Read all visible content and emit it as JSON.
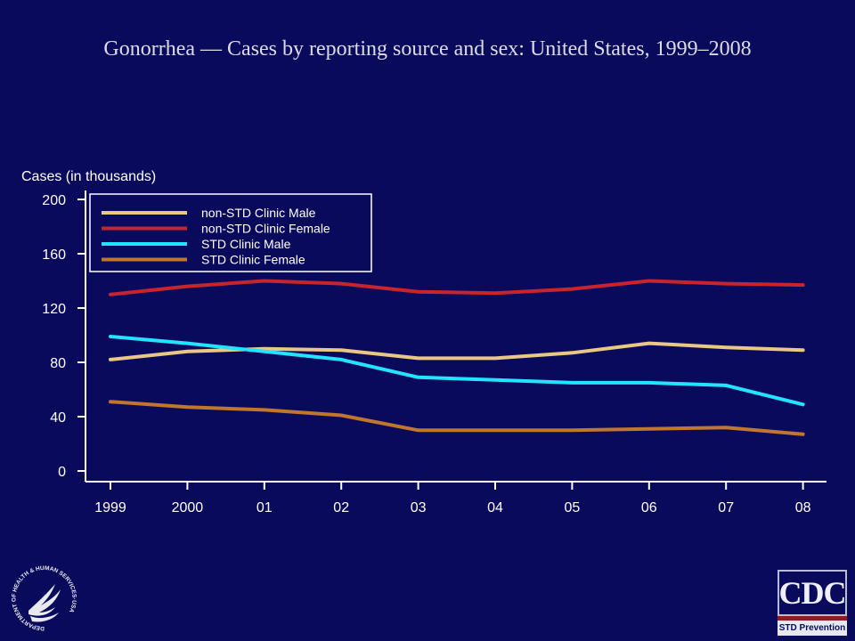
{
  "page": {
    "title": "Gonorrhea — Cases by reporting source and sex: United States, 1999–2008"
  },
  "chart_data": {
    "type": "line",
    "title": "Gonorrhea — Cases by reporting source and sex: United States, 1999–2008",
    "ylabel": "Cases (in thousands)",
    "xlabel": "",
    "categories": [
      "1999",
      "2000",
      "01",
      "02",
      "03",
      "04",
      "05",
      "06",
      "07",
      "08"
    ],
    "ylim": [
      0,
      200
    ],
    "yticks": [
      0,
      40,
      80,
      120,
      160,
      200
    ],
    "grid": false,
    "legend": "top-left",
    "series": [
      {
        "name": "non-STD Clinic Male",
        "color": "#e8c882",
        "values": [
          82,
          88,
          90,
          89,
          83,
          83,
          87,
          94,
          91,
          89
        ]
      },
      {
        "name": "non-STD Clinic Female",
        "color": "#c8242e",
        "values": [
          130,
          136,
          140,
          138,
          132,
          131,
          134,
          140,
          138,
          137
        ]
      },
      {
        "name": "STD Clinic Male",
        "color": "#22e4ff",
        "values": [
          99,
          94,
          88,
          82,
          69,
          67,
          65,
          65,
          63,
          49
        ]
      },
      {
        "name": "STD Clinic Female",
        "color": "#c0762c",
        "values": [
          51,
          47,
          45,
          41,
          30,
          30,
          30,
          31,
          32,
          27
        ]
      }
    ]
  },
  "logos": {
    "cdc_letters": "CDC",
    "cdc_subtitle": "STD Prevention",
    "hhs_seal_text": "DEPARTMENT OF HEALTH & HUMAN SERVICES·USA"
  },
  "colors": {
    "background": "#0a0a5c",
    "axis": "#ffffff",
    "text": "#ffffff"
  }
}
